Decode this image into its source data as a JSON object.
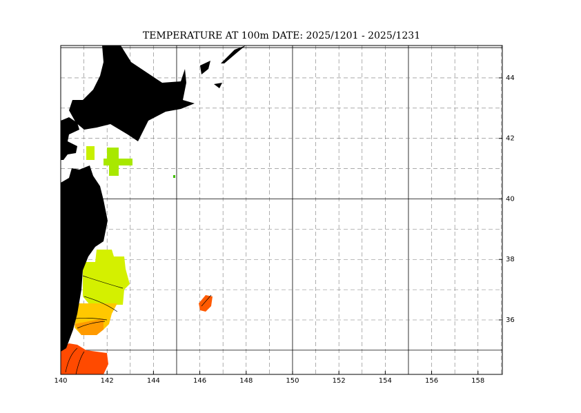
{
  "title": "TEMPERATURE AT 100m  DATE:  2025/1201 -  2025/1231",
  "map": {
    "xlim": [
      140,
      159.05
    ],
    "ylim": [
      34.2,
      45.07
    ],
    "xticks": [
      140,
      142,
      144,
      146,
      148,
      150,
      152,
      154,
      156,
      158
    ],
    "yticks": [
      36,
      38,
      40,
      42,
      44
    ]
  }
}
